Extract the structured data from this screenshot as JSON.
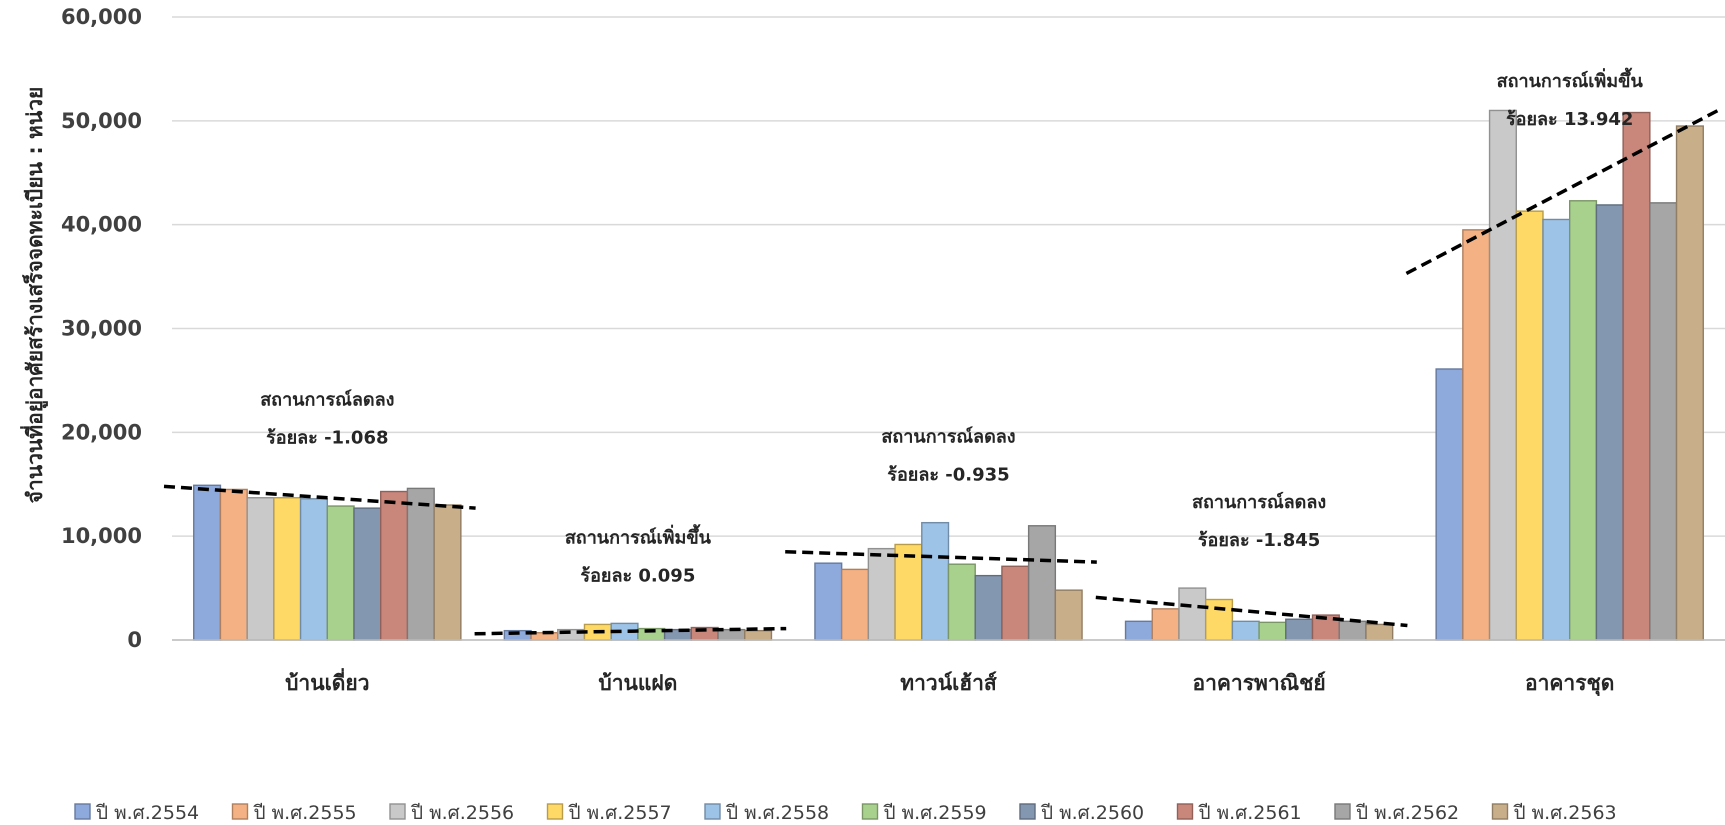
{
  "chart_data": {
    "type": "bar",
    "ylabel": "จำนวนที่อยู่อาศัยสร้างเสร็จจดทะเบียน : หน่วย",
    "ylim": [
      0,
      60000
    ],
    "yticks": [
      "0",
      "10,000",
      "20,000",
      "30,000",
      "40,000",
      "50,000",
      "60,000"
    ],
    "grid": true,
    "legend_position": "bottom",
    "categories": [
      "บ้านเดี่ยว",
      "บ้านแฝด",
      "ทาวน์เฮ้าส์",
      "อาคารพาณิชย์",
      "อาคารชุด"
    ],
    "series": [
      {
        "name": "ปี พ.ศ.2554",
        "color": "#8EA9DB",
        "values": [
          14900,
          900,
          7400,
          1800,
          26100
        ]
      },
      {
        "name": "ปี พ.ศ.2555",
        "color": "#F4B183",
        "values": [
          14500,
          700,
          6800,
          3000,
          39500
        ]
      },
      {
        "name": "ปี พ.ศ.2556",
        "color": "#C9C9C9",
        "values": [
          13700,
          1000,
          8800,
          5000,
          51000
        ]
      },
      {
        "name": "ปี พ.ศ.2557",
        "color": "#FFD966",
        "values": [
          13700,
          1500,
          9200,
          3900,
          41300
        ]
      },
      {
        "name": "ปี พ.ศ.2558",
        "color": "#9DC3E6",
        "values": [
          13600,
          1600,
          11300,
          1800,
          40500
        ]
      },
      {
        "name": "ปี พ.ศ.2559",
        "color": "#A9D18E",
        "values": [
          12900,
          1100,
          7300,
          1700,
          42300
        ]
      },
      {
        "name": "ปี พ.ศ.2560",
        "color": "#8497B0",
        "values": [
          12700,
          1000,
          6200,
          2000,
          41900
        ]
      },
      {
        "name": "ปี พ.ศ.2561",
        "color": "#C9877C",
        "values": [
          14300,
          1200,
          7100,
          2400,
          50800
        ]
      },
      {
        "name": "ปี พ.ศ.2562",
        "color": "#A6A6A6",
        "values": [
          14600,
          1000,
          11000,
          1800,
          42100
        ]
      },
      {
        "name": "ปี พ.ศ.2563",
        "color": "#C9AE8A",
        "values": [
          13000,
          900,
          4800,
          1500,
          49500
        ]
      }
    ],
    "annotations": [
      {
        "category": "บ้านเดี่ยว",
        "line1": "สถานการณ์ลดลง",
        "line2": "ร้อยละ -1.068",
        "trend": [
          14800,
          12700
        ]
      },
      {
        "category": "บ้านแฝด",
        "line1": "สถานการณ์เพิ่มขึ้น",
        "line2": "ร้อยละ 0.095",
        "trend": [
          600,
          1100
        ]
      },
      {
        "category": "ทาวน์เฮ้าส์",
        "line1": "สถานการณ์ลดลง",
        "line2": "ร้อยละ -0.935",
        "trend": [
          8500,
          7500
        ]
      },
      {
        "category": "อาคารพาณิชย์",
        "line1": "สถานการณ์ลดลง",
        "line2": "ร้อยละ -1.845",
        "trend": [
          4100,
          1400
        ]
      },
      {
        "category": "อาคารชุด",
        "line1": "สถานการณ์เพิ่มขึ้น",
        "line2": "ร้อยละ 13.942",
        "trend": [
          35300,
          51000
        ]
      }
    ]
  }
}
